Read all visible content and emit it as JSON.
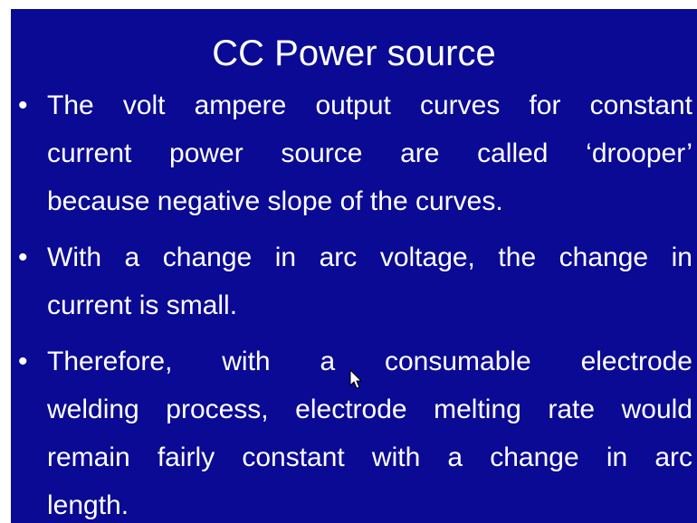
{
  "slide": {
    "title": "CC Power source",
    "bullets": [
      {
        "lines": [
          "The volt ampere output curves for constant",
          "current power source are called ‘drooper’",
          "because negative slope of the curves."
        ]
      },
      {
        "lines": [
          "With a change in arc voltage, the change in",
          "current is small."
        ]
      },
      {
        "lines": [
          "Therefore, with a consumable electrode",
          "welding process, electrode melting rate would",
          "remain fairly constant with a change in arc",
          "length."
        ]
      }
    ]
  }
}
